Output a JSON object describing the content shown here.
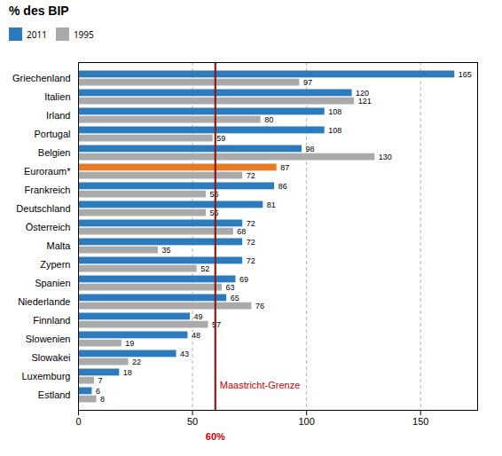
{
  "chart_data": {
    "type": "bar",
    "orientation": "horizontal",
    "title": "% des BIP",
    "categories": [
      "Estland",
      "Luxemburg",
      "Slowakei",
      "Slowenien",
      "Finnland",
      "Niederlande",
      "Spanien",
      "Zypern",
      "Malta",
      "Österreich",
      "Deutschland",
      "Frankreich",
      "Euroraum*",
      "Belgien",
      "Portugal",
      "Irland",
      "Italien",
      "Griechenland"
    ],
    "series": [
      {
        "name": "2011",
        "color": "#2B7BBD",
        "colors": [
          "#2B7BBD",
          "#2B7BBD",
          "#2B7BBD",
          "#2B7BBD",
          "#2B7BBD",
          "#2B7BBD",
          "#2B7BBD",
          "#2B7BBD",
          "#2B7BBD",
          "#2B7BBD",
          "#2B7BBD",
          "#2B7BBD",
          "#E87B22",
          "#2B7BBD",
          "#2B7BBD",
          "#2B7BBD",
          "#2B7BBD",
          "#2B7BBD"
        ],
        "values": [
          6,
          18,
          43,
          48,
          49,
          65,
          69,
          72,
          72,
          72,
          81,
          86,
          87,
          98,
          108,
          108,
          120,
          165
        ]
      },
      {
        "name": "1995",
        "color": "#AAAAAA",
        "values": [
          8,
          7,
          22,
          19,
          57,
          76,
          63,
          52,
          35,
          68,
          56,
          56,
          72,
          130,
          59,
          80,
          121,
          97
        ]
      }
    ],
    "xlim": [
      0,
      175
    ],
    "xticks": [
      0,
      50,
      100,
      150
    ],
    "grid": true,
    "data_labels": true,
    "legend": "top",
    "vlines": [
      {
        "x": 60,
        "color": "#8B1A1A"
      }
    ],
    "annotations": [
      {
        "x": 60,
        "text": "Maastricht-Grenze",
        "color": "#CC0000"
      },
      {
        "x": 60,
        "text": "60%",
        "color": "#CC0000"
      }
    ]
  }
}
